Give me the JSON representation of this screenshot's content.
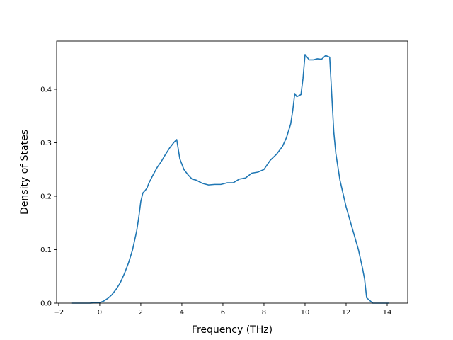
{
  "chart_data": {
    "type": "line",
    "title": "",
    "xlabel": "Frequency (THz)",
    "ylabel": "Density of States",
    "xlim": [
      -2.1,
      15.0
    ],
    "ylim": [
      0.0,
      0.49
    ],
    "grid": false,
    "x_ticks": [
      -2,
      0,
      2,
      4,
      6,
      8,
      10,
      12,
      14
    ],
    "y_ticks": [
      0.0,
      0.1,
      0.2,
      0.3,
      0.4
    ],
    "x_tick_labels": [
      "−2",
      "0",
      "2",
      "4",
      "6",
      "8",
      "10",
      "12",
      "14"
    ],
    "y_tick_labels": [
      "0.0",
      "0.1",
      "0.2",
      "0.3",
      "0.4"
    ],
    "series": [
      {
        "color": "#1f77b4",
        "x": [
          -1.35,
          -0.5,
          0.0,
          0.2,
          0.4,
          0.6,
          0.8,
          1.0,
          1.2,
          1.4,
          1.6,
          1.8,
          1.9,
          2.0,
          2.1,
          2.2,
          2.3,
          2.4,
          2.6,
          2.8,
          3.0,
          3.2,
          3.4,
          3.6,
          3.75,
          3.9,
          4.1,
          4.3,
          4.5,
          4.7,
          5.0,
          5.3,
          5.6,
          5.9,
          6.2,
          6.5,
          6.8,
          7.1,
          7.4,
          7.7,
          8.0,
          8.3,
          8.6,
          8.9,
          9.1,
          9.3,
          9.4,
          9.5,
          9.6,
          9.7,
          9.8,
          9.9,
          10.0,
          10.2,
          10.4,
          10.6,
          10.8,
          11.0,
          11.2,
          11.3,
          11.4,
          11.5,
          11.7,
          12.0,
          12.3,
          12.6,
          12.8,
          12.9,
          13.0,
          13.3,
          14.1
        ],
        "y": [
          0.0,
          0.0,
          0.001,
          0.004,
          0.009,
          0.016,
          0.026,
          0.038,
          0.055,
          0.075,
          0.1,
          0.135,
          0.16,
          0.19,
          0.206,
          0.21,
          0.215,
          0.225,
          0.24,
          0.254,
          0.265,
          0.278,
          0.29,
          0.3,
          0.306,
          0.27,
          0.25,
          0.24,
          0.232,
          0.23,
          0.224,
          0.221,
          0.222,
          0.222,
          0.225,
          0.225,
          0.232,
          0.234,
          0.243,
          0.245,
          0.25,
          0.267,
          0.278,
          0.293,
          0.31,
          0.335,
          0.36,
          0.392,
          0.386,
          0.388,
          0.39,
          0.42,
          0.465,
          0.455,
          0.455,
          0.457,
          0.456,
          0.463,
          0.46,
          0.39,
          0.32,
          0.28,
          0.23,
          0.18,
          0.14,
          0.1,
          0.065,
          0.045,
          0.01,
          0.0,
          0.0
        ]
      }
    ]
  }
}
